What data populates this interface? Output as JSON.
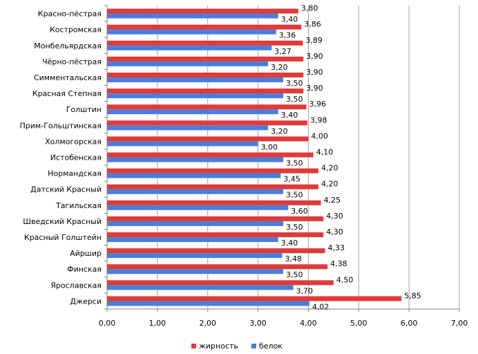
{
  "chart_data": {
    "type": "bar",
    "orientation": "horizontal",
    "categories": [
      "Красно-пёстрая",
      "Костромская",
      "Монбельярдская",
      "Чёрно-пёстрая",
      "Симментальская",
      "Красная Степная",
      "Голштин",
      "Прим-Гольштинская",
      "Холмогорская",
      "Истобенская",
      "Нормандская",
      "Датский Красный",
      "Тагильская",
      "Шведский Красный",
      "Красный Голштейн",
      "Айршир",
      "Финская",
      "Ярославская",
      "Джерси"
    ],
    "series": [
      {
        "name": "жирность",
        "color": "#e03a3a",
        "values": [
          3.8,
          3.86,
          3.89,
          3.9,
          3.9,
          3.9,
          3.96,
          3.98,
          4.0,
          4.1,
          4.2,
          4.2,
          4.25,
          4.3,
          4.3,
          4.33,
          4.38,
          4.5,
          5.85
        ],
        "labels": [
          "3,80",
          "3,86",
          "3,89",
          "3,90",
          "3,90",
          "3,90",
          "3,96",
          "3,98",
          "4,00",
          "4,10",
          "4,20",
          "4,20",
          "4,25",
          "4,30",
          "4,30",
          "4,33",
          "4,38",
          "4,50",
          "5,85"
        ]
      },
      {
        "name": "белок",
        "color": "#4a7fd4",
        "values": [
          3.4,
          3.36,
          3.27,
          3.2,
          3.5,
          3.5,
          3.4,
          3.2,
          3.0,
          3.5,
          3.45,
          3.5,
          3.6,
          3.5,
          3.4,
          3.48,
          3.5,
          3.7,
          4.02
        ],
        "labels": [
          "3,40",
          "3,36",
          "3,27",
          "3,20",
          "3,50",
          "3,50",
          "3,40",
          "3,20",
          "3,00",
          "3,50",
          "3,45",
          "3,50",
          "3,60",
          "3,50",
          "3,40",
          "3,48",
          "3,50",
          "3,70",
          "4,02"
        ]
      }
    ],
    "xlim": [
      0,
      7
    ],
    "x_ticks": [
      "0,00",
      "1,00",
      "2,00",
      "3,00",
      "4,00",
      "5,00",
      "6,00",
      "7,00"
    ],
    "grid": true,
    "legend_position": "bottom",
    "title": "",
    "xlabel": "",
    "ylabel": ""
  }
}
